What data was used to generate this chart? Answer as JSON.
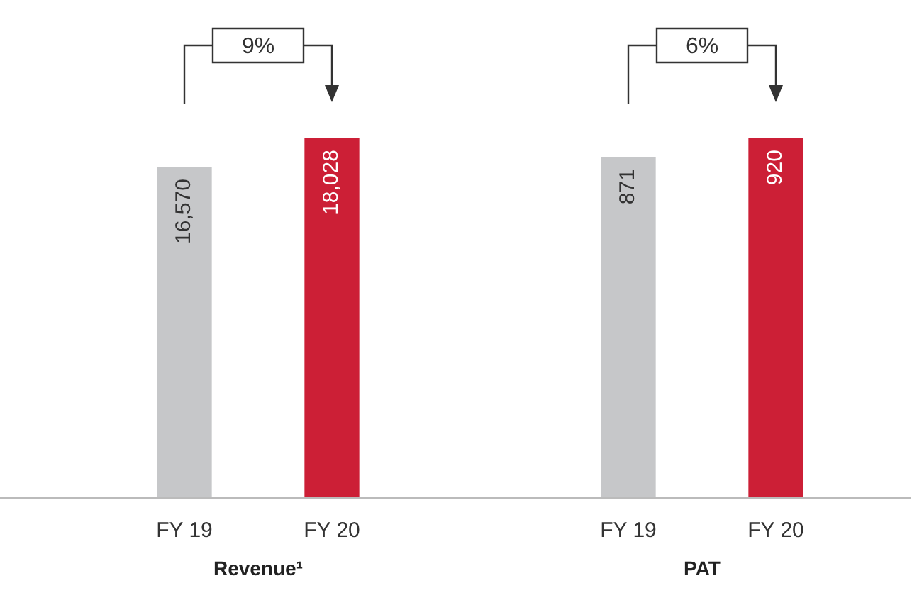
{
  "chart_data": [
    {
      "type": "bar",
      "xlabel": "Revenue¹",
      "categories": [
        "FY 19",
        "FY 20"
      ],
      "values": [
        16570,
        18028
      ],
      "value_labels": [
        "16,570",
        "18,028"
      ],
      "colors": [
        "#c6c7c9",
        "#cc1f36"
      ],
      "annotations": [
        "9%"
      ]
    },
    {
      "type": "bar",
      "xlabel": "PAT",
      "categories": [
        "FY 19",
        "FY 20"
      ],
      "values": [
        871,
        920
      ],
      "value_labels": [
        "871",
        "920"
      ],
      "colors": [
        "#c6c7c9",
        "#cc1f36"
      ],
      "annotations": [
        "6%"
      ]
    }
  ]
}
